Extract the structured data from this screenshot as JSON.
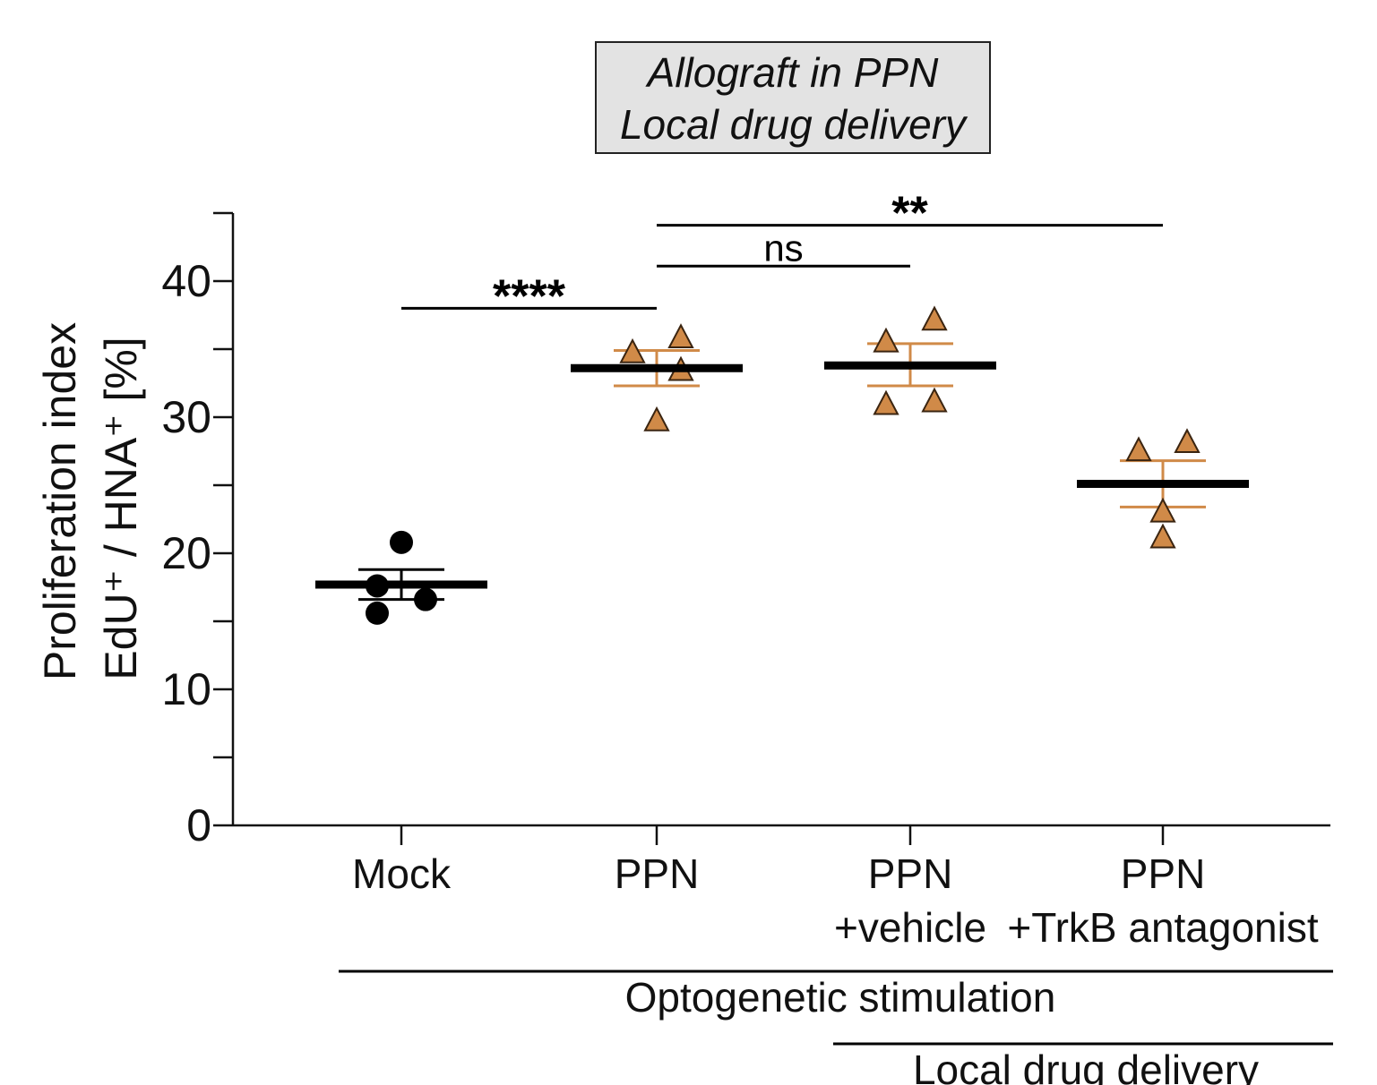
{
  "title_box": {
    "line1": "Allograft in PPN",
    "line2": "Local drug delivery"
  },
  "colors": {
    "mock": "#000000",
    "ppn": "#d08a48",
    "axis": "#111111"
  },
  "chart_data": {
    "type": "scatter",
    "ylabel_line1": "Proliferation index",
    "ylabel_line2": "EdU⁺ / HNA⁺ [%]",
    "ylim": [
      0,
      45
    ],
    "yticks_major": [
      0,
      10,
      20,
      30,
      40
    ],
    "yticks_minor": [
      5,
      15,
      25,
      35,
      45
    ],
    "groups": [
      {
        "label_lines": [
          "Mock"
        ],
        "marker": "circle",
        "color_key": "mock",
        "mean": 17.7,
        "sem_low": 16.6,
        "sem_high": 18.8,
        "points": [
          {
            "dx": 0,
            "y": 20.8
          },
          {
            "dx": -0.1,
            "y": 17.6
          },
          {
            "dx": 0.1,
            "y": 16.6
          },
          {
            "dx": -0.1,
            "y": 15.6
          }
        ]
      },
      {
        "label_lines": [
          "PPN"
        ],
        "marker": "triangle",
        "color_key": "ppn",
        "mean": 33.6,
        "sem_low": 32.3,
        "sem_high": 34.9,
        "points": [
          {
            "dx": -0.1,
            "y": 34.8
          },
          {
            "dx": 0.1,
            "y": 35.9
          },
          {
            "dx": 0.1,
            "y": 33.5
          },
          {
            "dx": 0,
            "y": 29.8
          }
        ]
      },
      {
        "label_lines": [
          "PPN",
          "+vehicle"
        ],
        "marker": "triangle",
        "color_key": "ppn",
        "mean": 33.8,
        "sem_low": 32.3,
        "sem_high": 35.4,
        "points": [
          {
            "dx": -0.1,
            "y": 35.6
          },
          {
            "dx": 0.1,
            "y": 37.2
          },
          {
            "dx": -0.1,
            "y": 31.0
          },
          {
            "dx": 0.1,
            "y": 31.2
          }
        ]
      },
      {
        "label_lines": [
          "PPN",
          "+TrkB antagonist"
        ],
        "marker": "triangle",
        "color_key": "ppn",
        "mean": 25.1,
        "sem_low": 23.4,
        "sem_high": 26.8,
        "points": [
          {
            "dx": -0.1,
            "y": 27.6
          },
          {
            "dx": 0.1,
            "y": 28.2
          },
          {
            "dx": 0,
            "y": 23.1
          },
          {
            "dx": 0,
            "y": 21.2
          }
        ]
      }
    ],
    "significance": [
      {
        "from": 0,
        "to": 1,
        "y": 38.0,
        "label": "****"
      },
      {
        "from": 1,
        "to": 2,
        "y": 41.1,
        "label": "ns"
      },
      {
        "from": 1,
        "to": 3,
        "y": 44.1,
        "label": "**"
      }
    ],
    "conditions": [
      {
        "label": "Optogenetic stimulation",
        "from_group": 0,
        "to_group": 3
      },
      {
        "label": "Local drug delivery",
        "from_group": 2,
        "to_group": 3
      }
    ]
  }
}
